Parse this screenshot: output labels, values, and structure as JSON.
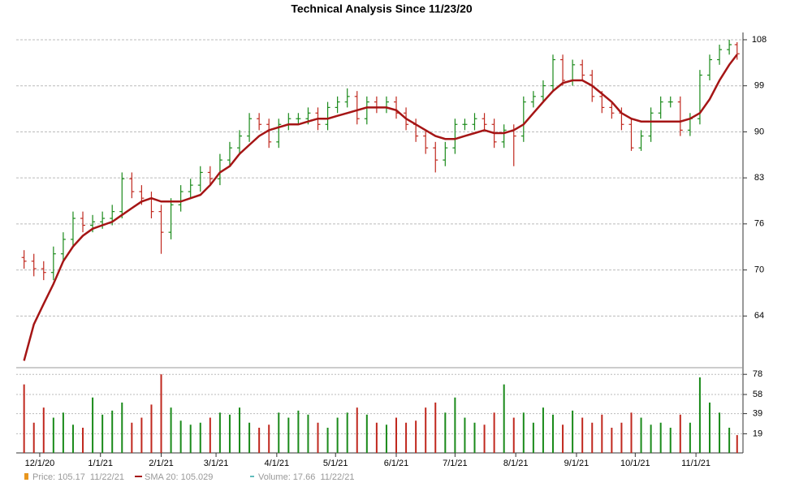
{
  "chart_data": {
    "type": "ohlc",
    "title": "Technical Analysis Since 11/23/20",
    "x": [
      "11/23/20",
      "11/28/20",
      "12/3/20",
      "12/8/20",
      "12/13/20",
      "12/18/20",
      "12/23/20",
      "12/28/20",
      "1/2/21",
      "1/7/21",
      "1/12/21",
      "1/17/21",
      "1/22/21",
      "1/27/21",
      "2/1/21",
      "2/6/21",
      "2/11/21",
      "2/16/21",
      "2/21/21",
      "2/26/21",
      "3/3/21",
      "3/8/21",
      "3/13/21",
      "3/18/21",
      "3/23/21",
      "3/28/21",
      "4/2/21",
      "4/7/21",
      "4/12/21",
      "4/17/21",
      "4/22/21",
      "4/27/21",
      "5/2/21",
      "5/7/21",
      "5/12/21",
      "5/17/21",
      "5/22/21",
      "5/27/21",
      "6/1/21",
      "6/6/21",
      "6/11/21",
      "6/16/21",
      "6/21/21",
      "6/26/21",
      "7/1/21",
      "7/6/21",
      "7/11/21",
      "7/16/21",
      "7/21/21",
      "7/26/21",
      "7/31/21",
      "8/5/21",
      "8/10/21",
      "8/15/21",
      "8/20/21",
      "8/25/21",
      "8/30/21",
      "9/4/21",
      "9/9/21",
      "9/14/21",
      "9/19/21",
      "9/24/21",
      "9/29/21",
      "10/4/21",
      "10/9/21",
      "10/14/21",
      "10/19/21",
      "10/24/21",
      "10/29/21",
      "11/3/21",
      "11/8/21",
      "11/13/21",
      "11/18/21",
      "11/22/21"
    ],
    "xlim": [
      "11/19/20",
      "11/25/21"
    ],
    "xticks": [
      "12/1/20",
      "1/1/21",
      "2/1/21",
      "3/1/21",
      "4/1/21",
      "5/1/21",
      "6/1/21",
      "7/1/21",
      "8/1/21",
      "9/1/21",
      "10/1/21",
      "11/1/21"
    ],
    "log_scale": true,
    "grid": true,
    "ylim": [
      58.3,
      109.5
    ],
    "yticks": [
      {
        "value": 64,
        "label": "64"
      },
      {
        "value": 69.83,
        "label": "70"
      },
      {
        "value": 76.2,
        "label": "76"
      },
      {
        "value": 83.14,
        "label": "83"
      },
      {
        "value": 90.71,
        "label": "90"
      },
      {
        "value": 98.98,
        "label": "99"
      },
      {
        "value": 108,
        "label": "108"
      }
    ],
    "price": {
      "name": "Price",
      "color": "#e8961e",
      "up_color": "#1a8a1a",
      "down_color": "#c0281e",
      "open": [
        71.5,
        71,
        70,
        69.5,
        72,
        74,
        77,
        76,
        76.5,
        77,
        78,
        83,
        81,
        80,
        78,
        75,
        79,
        81,
        82,
        84,
        83,
        86,
        88,
        90,
        93,
        92,
        89,
        92,
        93,
        93,
        94,
        92,
        95,
        96,
        97,
        93,
        96,
        95,
        96,
        94,
        92,
        90,
        88,
        86,
        88,
        92,
        92,
        93,
        92,
        89,
        91,
        90,
        96,
        97,
        99,
        104,
        100,
        103,
        101,
        97,
        95,
        94,
        92,
        88,
        90,
        94,
        96,
        96,
        91,
        93,
        101,
        104,
        106,
        107
      ],
      "high": [
        72.5,
        72,
        71,
        73,
        75,
        78,
        78,
        77.5,
        78,
        79,
        84,
        84,
        82,
        81,
        79,
        80,
        82,
        83,
        85,
        85,
        87,
        89,
        91,
        94,
        94,
        93,
        93,
        94,
        94,
        95,
        95,
        96,
        97,
        98.5,
        98,
        97,
        97,
        97,
        97,
        95,
        93,
        91,
        89,
        89,
        93,
        93,
        94,
        94,
        93,
        92,
        92,
        97,
        98,
        100,
        105,
        105,
        104,
        104,
        102,
        98,
        96,
        95,
        93,
        91,
        95,
        97,
        97,
        97,
        94,
        102,
        105,
        107,
        108,
        107.5
      ],
      "low": [
        70,
        69,
        68.5,
        68.5,
        71,
        73,
        75,
        75,
        75.5,
        76,
        77,
        80,
        79,
        77,
        72,
        74,
        78,
        80,
        81,
        82,
        82,
        85,
        87,
        89,
        91,
        88,
        88,
        91,
        92,
        92,
        91,
        91,
        94,
        95,
        92,
        92,
        94,
        94,
        93,
        91,
        89,
        87,
        84,
        85,
        87,
        91,
        91,
        91,
        88,
        88,
        85,
        89,
        95,
        96,
        98,
        99,
        99,
        100,
        96,
        94,
        93,
        91,
        87.5,
        87.5,
        89,
        93,
        95,
        90,
        90,
        92,
        100,
        103,
        105,
        104
      ],
      "close": [
        71,
        70,
        69.5,
        72,
        74,
        77,
        76,
        76.5,
        77,
        78,
        83,
        81,
        80,
        78,
        75,
        79,
        81,
        82,
        84,
        83,
        86,
        88,
        90,
        93,
        92,
        89,
        92,
        93,
        93,
        94,
        92,
        95,
        96,
        97,
        93,
        96,
        95,
        96,
        94,
        92,
        90,
        88,
        86,
        88,
        92,
        92,
        93,
        92,
        89,
        91,
        90,
        96,
        97,
        99,
        104,
        100,
        103,
        101,
        97,
        95,
        94,
        92,
        88,
        90,
        94,
        96,
        96,
        91,
        93,
        101,
        104,
        106,
        107,
        105.17
      ]
    },
    "sma": {
      "name": "SMA 20",
      "color": "#a51515",
      "values": [
        58.8,
        63,
        65.5,
        68,
        71,
        73,
        74.5,
        75.5,
        76,
        76.5,
        77.5,
        78.5,
        79.5,
        80,
        79.5,
        79.5,
        79.5,
        80,
        80.5,
        82,
        84,
        85,
        87,
        88.5,
        90,
        91,
        91.5,
        92,
        92,
        92.5,
        93,
        93,
        93.5,
        94,
        94.5,
        95,
        95,
        95,
        94.5,
        93,
        92,
        91,
        90,
        89.5,
        89.5,
        90,
        90.5,
        91,
        90.5,
        90.5,
        91,
        92,
        94,
        96,
        98,
        99.5,
        100,
        100,
        99,
        97.5,
        96,
        94,
        93,
        92.5,
        92.5,
        92.5,
        92.5,
        92.5,
        93,
        94,
        96.5,
        100,
        103,
        105.029
      ]
    },
    "volume": {
      "name": "Volume",
      "color": "#2aa5a5",
      "values": [
        68,
        30,
        45,
        35,
        40,
        28,
        25,
        55,
        38,
        42,
        50,
        30,
        35,
        48,
        78,
        45,
        32,
        28,
        30,
        35,
        40,
        38,
        45,
        30,
        25,
        28,
        40,
        35,
        42,
        38,
        30,
        25,
        35,
        40,
        45,
        38,
        30,
        28,
        35,
        30,
        32,
        45,
        50,
        40,
        55,
        35,
        30,
        28,
        40,
        68,
        35,
        40,
        30,
        45,
        38,
        28,
        42,
        35,
        30,
        38,
        25,
        30,
        40,
        35,
        28,
        30,
        25,
        38,
        30,
        75,
        50,
        40,
        25,
        17.66
      ],
      "ylim": [
        0,
        83
      ],
      "yticks": [
        19,
        39,
        58,
        78
      ]
    },
    "legend": [
      "Price: 105.17  11/22/21",
      "SMA 20: 105.029",
      "Volume: 17.66  11/22/21"
    ]
  }
}
